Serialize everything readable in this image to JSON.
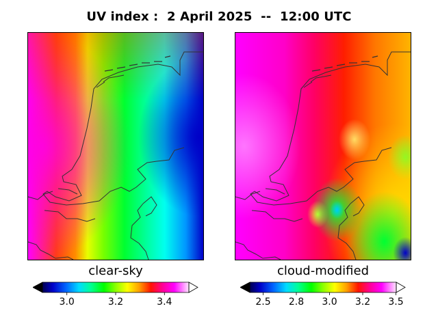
{
  "title": "UV index :  2 April 2025  --  12:00 UTC",
  "panels": [
    {
      "label": "clear-sky",
      "colorbar": {
        "min": 2.9,
        "max": 3.5,
        "extend": "both",
        "ticks": [
          "3.0",
          "3.2",
          "3.4"
        ],
        "tick_values": [
          3.0,
          3.2,
          3.4
        ]
      }
    },
    {
      "label": "cloud-modified",
      "colorbar": {
        "min": 2.4,
        "max": 3.5,
        "extend": "both",
        "ticks": [
          "2.5",
          "2.8",
          "3.0",
          "3.2",
          "3.5"
        ],
        "tick_values": [
          2.5,
          2.75,
          3.0,
          3.25,
          3.5
        ]
      }
    }
  ],
  "colormap": "gist_ncar",
  "coastline_color": "#333333"
}
